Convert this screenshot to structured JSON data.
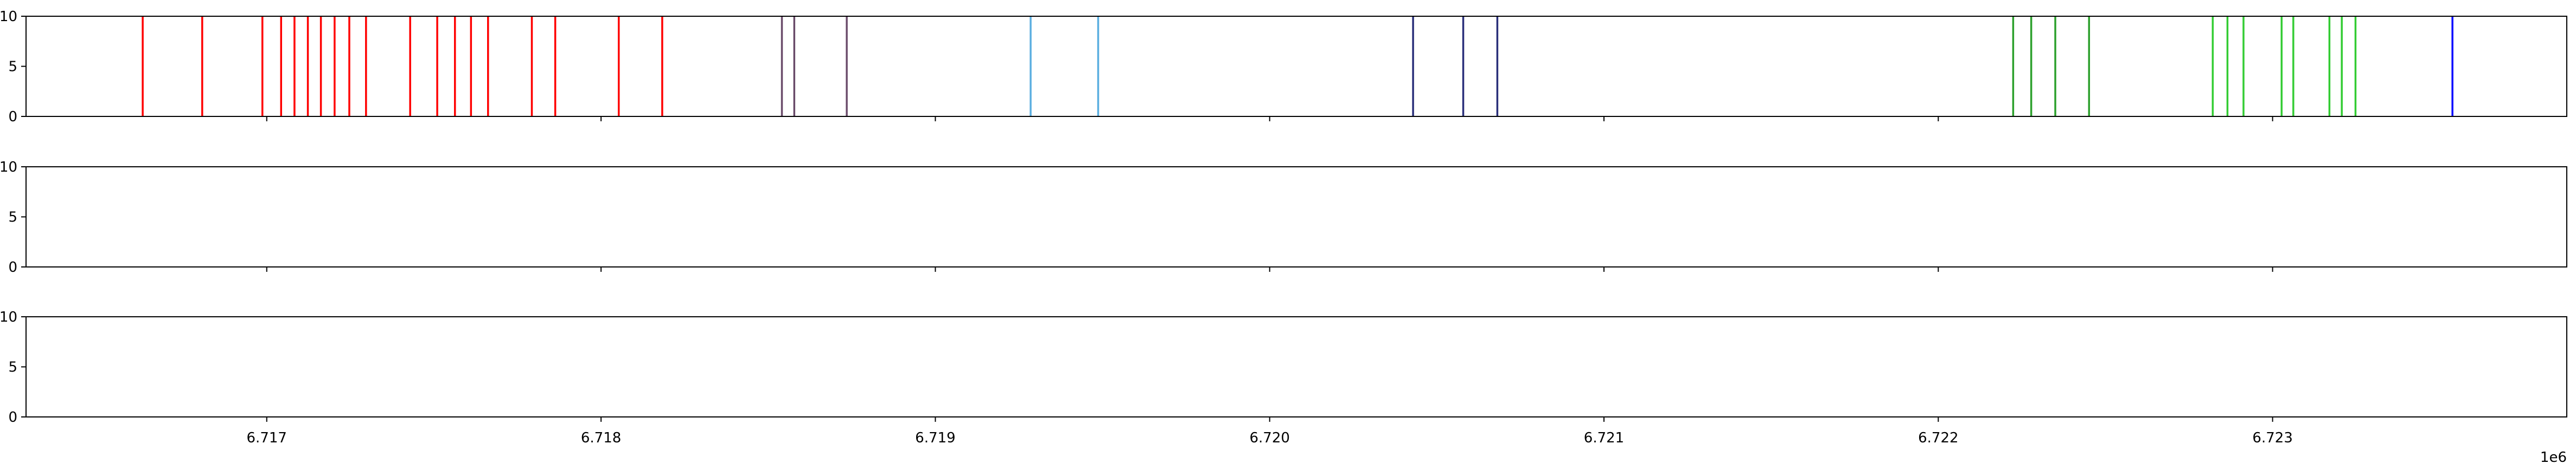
{
  "chart_data": [
    {
      "type": "event",
      "ylim": [
        0,
        10
      ],
      "yticks": [
        "0",
        "5",
        "10"
      ],
      "xlim": [
        6716280,
        6723880
      ],
      "x_offset_label": "1e6",
      "xticks": [
        {
          "value": 6717000,
          "label": "6.717"
        },
        {
          "value": 6718000,
          "label": "6.718"
        },
        {
          "value": 6719000,
          "label": "6.719"
        },
        {
          "value": 6720000,
          "label": "6.720"
        },
        {
          "value": 6721000,
          "label": "6.721"
        },
        {
          "value": 6722000,
          "label": "6.722"
        },
        {
          "value": 6723000,
          "label": "6.723"
        }
      ],
      "series": [
        {
          "color": "#ff0000",
          "x": [
            6716629,
            6716807,
            6716987,
            6717043,
            6717083,
            6717123,
            6717162,
            6717203,
            6717247,
            6717297,
            6717429,
            6717510,
            6717563,
            6717611,
            6717662,
            6717793,
            6717863,
            6718053,
            6718183
          ]
        },
        {
          "color": "#6b4c6b",
          "x": [
            6718541,
            6718578,
            6718735
          ]
        },
        {
          "color": "#5aaee0",
          "x": [
            6719285,
            6719487
          ]
        },
        {
          "color": "#2a2f7a",
          "x": [
            6720429,
            6720579,
            6720681
          ]
        },
        {
          "color": "#2ca02c",
          "x": [
            6722224,
            6722278,
            6722350,
            6722451
          ]
        },
        {
          "color": "#33cc33",
          "x": [
            6722821,
            6722865,
            6722913,
            6723027,
            6723062,
            6723170,
            6723207,
            6723248
          ]
        },
        {
          "color": "#0000ff",
          "x": [
            6723538
          ]
        }
      ]
    },
    {
      "type": "event",
      "ylim": [
        0,
        10
      ],
      "yticks": [
        "0",
        "5",
        "10"
      ],
      "xlim": [
        6716280,
        6723880
      ],
      "series": []
    },
    {
      "type": "event",
      "ylim": [
        0,
        10
      ],
      "yticks": [
        "0",
        "5",
        "10"
      ],
      "xlim": [
        6716280,
        6723880
      ],
      "series": []
    }
  ]
}
